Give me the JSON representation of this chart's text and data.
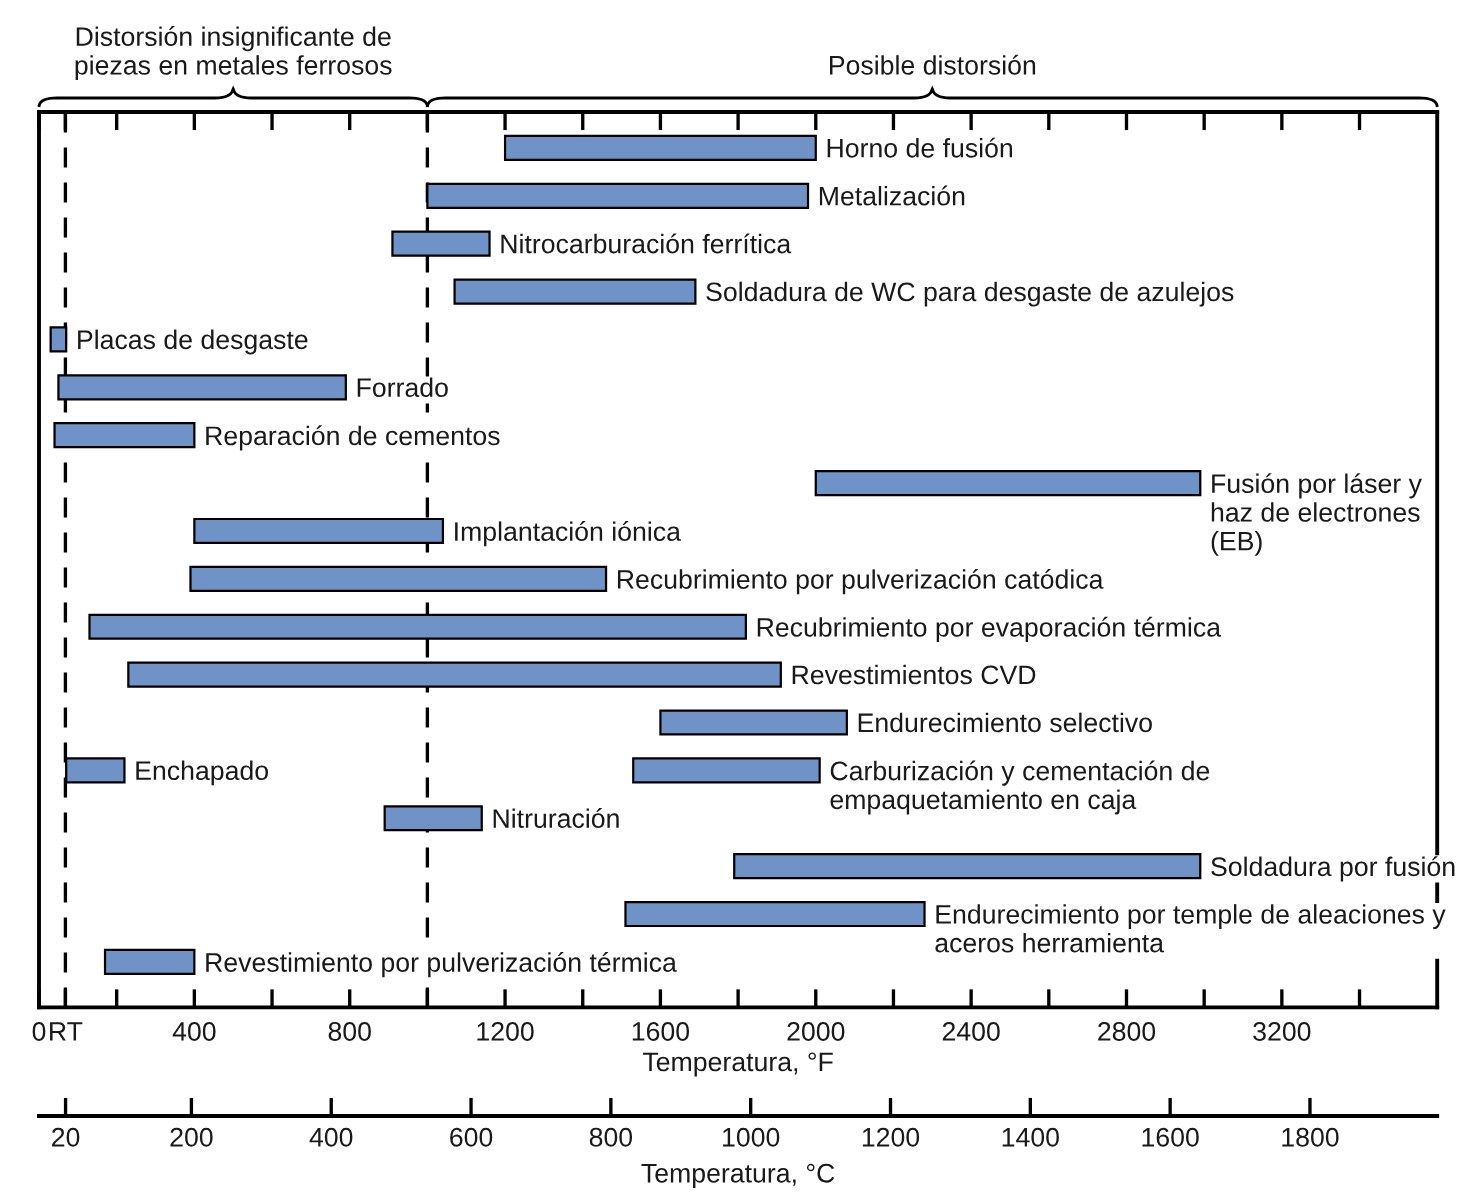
{
  "chart_data": {
    "type": "bar",
    "orientation": "horizontal",
    "categories": [
      "Horno de fusión",
      "Metalización",
      "Nitrocarburación ferrítica",
      "Soldadura de WC para desgaste de azulejos",
      "Placas de desgaste",
      "Forrado",
      "Reparación de cementos",
      "Fusión por láser y\nhaz de electrones\n(EB)",
      "Implantación iónica",
      "Recubrimiento por pulverización catódica",
      "Recubrimiento por evaporación térmica",
      "Revestimientos CVD",
      "Endurecimiento selectivo",
      "Carburización y cementación de\nempaquetamiento en caja",
      "Nitruración",
      "Soldadura por fusión",
      "Endurecimiento por temple de aleaciones y\naceros herramienta",
      "Revestimiento por pulverización térmica"
    ],
    "series": [
      {
        "color": "#6f93c6",
        "base": [
          1200,
          1000,
          910,
          1070,
          30,
          50,
          40,
          2000,
          400,
          390,
          130,
          230,
          1600,
          1530,
          890,
          1790,
          1510,
          170
        ],
        "values": [
          800,
          980,
          250,
          620,
          40,
          740,
          360,
          990,
          640,
          1070,
          1690,
          1680,
          480,
          480,
          250,
          1200,
          770,
          230
        ]
      },
      {
        "name": "Enchapado",
        "color": "#6f93c6",
        "base": [
          null,
          null,
          null,
          null,
          null,
          null,
          null,
          null,
          null,
          null,
          null,
          null,
          null,
          70,
          null,
          null,
          null,
          null
        ],
        "values": [
          null,
          null,
          null,
          null,
          null,
          null,
          null,
          null,
          null,
          null,
          null,
          null,
          null,
          150,
          null,
          null,
          null,
          null
        ]
      }
    ],
    "xlim": [
      0,
      3600
    ],
    "xticks": [
      0,
      {
        "value": 68,
        "label": "RT"
      },
      {
        "value": 200,
        "label": null
      },
      400,
      {
        "value": 600,
        "label": null
      },
      800,
      {
        "value": 1000,
        "label": null
      },
      1200,
      {
        "value": 1400,
        "label": null
      },
      1600,
      {
        "value": 1800,
        "label": null
      },
      2000,
      {
        "value": 2200,
        "label": null
      },
      2400,
      {
        "value": 2600,
        "label": null
      },
      2800,
      {
        "value": 3000,
        "label": null
      },
      3200,
      {
        "value": 3400,
        "label": null
      }
    ],
    "xlabel": "Temperatura, °F",
    "x2lim": [
      -18,
      1982
    ],
    "x2ticks": [
      20,
      200,
      400,
      600,
      800,
      1000,
      1200,
      1400,
      1600,
      1800
    ],
    "x2label": "Temperatura, °C",
    "ref_lines": [
      {
        "axis": "x",
        "value": 68,
        "line_style": "dashed"
      },
      {
        "axis": "x",
        "value": 1000,
        "line_style": "dashed"
      }
    ],
    "annotations": [
      "Distorsión insignificante de\npiezas en metales ferrosos",
      "Posible distorsión"
    ]
  }
}
